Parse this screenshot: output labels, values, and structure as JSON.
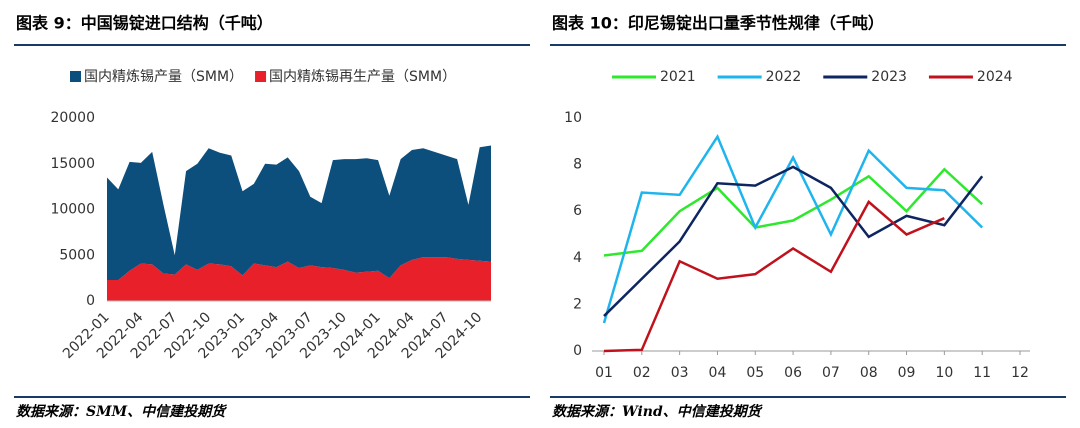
{
  "chart_data": [
    {
      "type": "area",
      "stacked": true,
      "title": "图表 9：中国锡锭进口结构（千吨）",
      "source": "数据来源：SMM、中信建投期货",
      "categories": [
        "2022-01",
        null,
        null,
        "2022-04",
        null,
        null,
        "2022-07",
        null,
        null,
        "2022-10",
        null,
        null,
        "2023-01",
        null,
        null,
        "2023-04",
        null,
        null,
        "2023-07",
        null,
        null,
        "2023-10",
        null,
        null,
        "2024-01",
        null,
        null,
        "2024-04",
        null,
        null,
        "2024-07",
        null,
        null,
        "2024-10",
        null
      ],
      "series": [
        {
          "name": "国内精炼锡产量（SMM）",
          "color": "#0c4e7c",
          "values": [
            11200,
            9900,
            11900,
            11000,
            12300,
            7500,
            2100,
            10200,
            11600,
            12600,
            12200,
            12100,
            9200,
            8700,
            11100,
            11200,
            11400,
            10600,
            7500,
            7000,
            11800,
            12100,
            12400,
            12400,
            12100,
            9000,
            11600,
            12000,
            11900,
            11500,
            11100,
            10900,
            6000,
            12400,
            12700
          ]
        },
        {
          "name": "国内精炼锡再生产量（SMM）",
          "color": "#e8202a",
          "values": [
            2300,
            2300,
            3300,
            4100,
            4000,
            3000,
            2900,
            4000,
            3400,
            4100,
            4000,
            3800,
            2800,
            4100,
            3900,
            3700,
            4300,
            3600,
            3900,
            3700,
            3600,
            3400,
            3100,
            3200,
            3300,
            2500,
            3900,
            4500,
            4800,
            4800,
            4800,
            4600,
            4500,
            4400,
            4300
          ]
        }
      ],
      "ylim": [
        0,
        20000
      ],
      "yticks": [
        0,
        5000,
        10000,
        15000,
        20000
      ],
      "legend": "top"
    },
    {
      "type": "line",
      "title": "图表 10：印尼锡锭出口量季节性规律（千吨）",
      "source": "数据来源：Wind、中信建投期货",
      "categories": [
        "01",
        "02",
        "03",
        "04",
        "05",
        "06",
        "07",
        "08",
        "09",
        "10",
        "11",
        "12"
      ],
      "series": [
        {
          "name": "2021",
          "color": "#2ee82e",
          "values": [
            4.1,
            4.3,
            6.0,
            7.0,
            5.3,
            5.6,
            6.5,
            7.5,
            6.0,
            7.8,
            6.3,
            null
          ]
        },
        {
          "name": "2022",
          "color": "#1eb4ee",
          "values": [
            1.2,
            6.8,
            6.7,
            9.2,
            5.3,
            8.3,
            5.0,
            8.6,
            7.0,
            6.9,
            5.3,
            null
          ]
        },
        {
          "name": "2023",
          "color": "#0d2560",
          "values": [
            1.5,
            3.1,
            4.7,
            7.2,
            7.1,
            7.9,
            7.0,
            4.9,
            5.8,
            5.4,
            7.5,
            null
          ]
        },
        {
          "name": "2024",
          "color": "#c0121c",
          "values": [
            0,
            0.05,
            3.85,
            3.1,
            3.3,
            4.4,
            3.4,
            6.4,
            5.0,
            5.7,
            null,
            null
          ]
        }
      ],
      "ylim": [
        0,
        10
      ],
      "yticks": [
        0,
        2,
        4,
        6,
        8,
        10
      ],
      "legend": "top"
    }
  ]
}
